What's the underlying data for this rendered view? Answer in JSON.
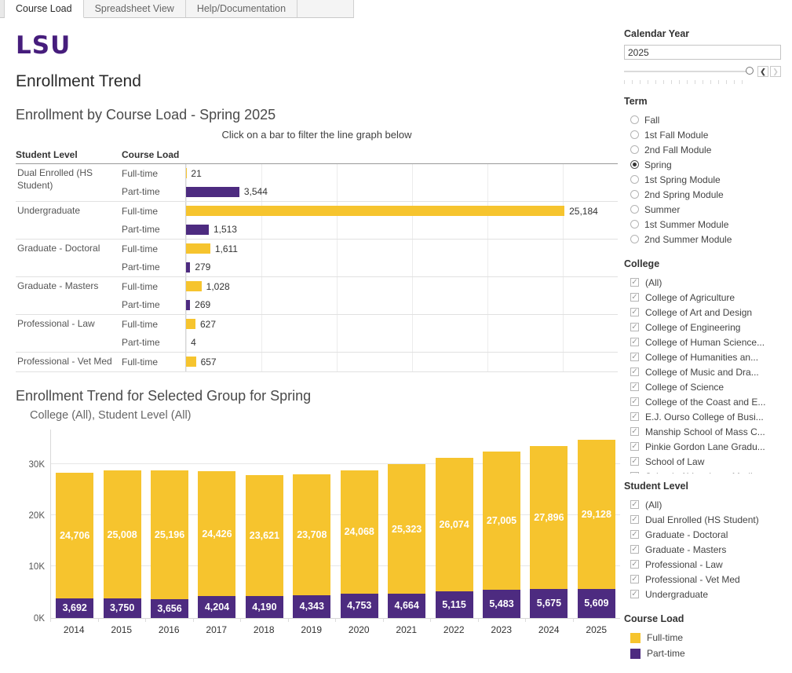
{
  "colors": {
    "gold": "#F6C42E",
    "purple": "#4D2B80",
    "logo_purple": "#461D7C"
  },
  "tabs": [
    {
      "label": "Course Load",
      "active": true
    },
    {
      "label": "Spreadsheet View",
      "active": false
    },
    {
      "label": "Help/Documentation",
      "active": false
    }
  ],
  "logo_text": "LSU",
  "page_title": "Enrollment Trend",
  "chart_data": [
    {
      "id": "course_load_by_level",
      "type": "bar",
      "orientation": "horizontal",
      "title": "Enrollment by Course Load - Spring 2025",
      "subtitle": "Click on a bar to filter the line graph below",
      "col_headers": [
        "Student Level",
        "Course Load"
      ],
      "xlim": [
        0,
        28730
      ],
      "gridline_interval": 5000,
      "rows": [
        {
          "level": "Dual Enrolled (HS Student)",
          "entries": [
            {
              "load": "Full-time",
              "series": "Full-time",
              "value": 21,
              "label": "21"
            },
            {
              "load": "Part-time",
              "series": "Part-time",
              "value": 3544,
              "label": "3,544"
            }
          ]
        },
        {
          "level": "Undergraduate",
          "entries": [
            {
              "load": "Full-time",
              "series": "Full-time",
              "value": 25184,
              "label": "25,184"
            },
            {
              "load": "Part-time",
              "series": "Part-time",
              "value": 1513,
              "label": "1,513"
            }
          ]
        },
        {
          "level": "Graduate - Doctoral",
          "entries": [
            {
              "load": "Full-time",
              "series": "Full-time",
              "value": 1611,
              "label": "1,611"
            },
            {
              "load": "Part-time",
              "series": "Part-time",
              "value": 279,
              "label": "279"
            }
          ]
        },
        {
          "level": "Graduate - Masters",
          "entries": [
            {
              "load": "Full-time",
              "series": "Full-time",
              "value": 1028,
              "label": "1,028"
            },
            {
              "load": "Part-time",
              "series": "Part-time",
              "value": 269,
              "label": "269"
            }
          ]
        },
        {
          "level": "Professional - Law",
          "entries": [
            {
              "load": "Full-time",
              "series": "Full-time",
              "value": 627,
              "label": "627"
            },
            {
              "load": "Part-time",
              "series": "Part-time",
              "value": 4,
              "label": "4"
            }
          ]
        },
        {
          "level": "Professional - Vet Med",
          "entries": [
            {
              "load": "Full-time",
              "series": "Full-time",
              "value": 657,
              "label": "657"
            }
          ]
        }
      ]
    },
    {
      "id": "enrollment_trend",
      "type": "bar",
      "stacked": true,
      "title": "Enrollment Trend for Selected Group for Spring",
      "subtitle": "College (All), Student Level (All)",
      "categories": [
        "2014",
        "2015",
        "2016",
        "2017",
        "2018",
        "2019",
        "2020",
        "2021",
        "2022",
        "2023",
        "2024",
        "2025"
      ],
      "series": [
        {
          "name": "Full-time",
          "values": [
            24706,
            25008,
            25196,
            24426,
            23621,
            23708,
            24068,
            25323,
            26074,
            27005,
            27896,
            29128
          ],
          "labels": [
            "24,706",
            "25,008",
            "25,196",
            "24,426",
            "23,621",
            "23,708",
            "24,068",
            "25,323",
            "26,074",
            "27,005",
            "27,896",
            "29,128"
          ]
        },
        {
          "name": "Part-time",
          "values": [
            3692,
            3750,
            3656,
            4204,
            4190,
            4343,
            4753,
            4664,
            5115,
            5483,
            5675,
            5609
          ],
          "labels": [
            "3,692",
            "3,750",
            "3,656",
            "4,204",
            "4,190",
            "4,343",
            "4,753",
            "4,664",
            "5,115",
            "5,483",
            "5,675",
            "5,609"
          ]
        }
      ],
      "yticks": [
        {
          "value": 0,
          "label": "0K"
        },
        {
          "value": 10000,
          "label": "10K"
        },
        {
          "value": 20000,
          "label": "20K"
        },
        {
          "value": 30000,
          "label": "30K"
        }
      ],
      "ylim": [
        0,
        37000
      ],
      "grid": true,
      "legend_position": "right-panel"
    }
  ],
  "filters": {
    "calendar_year": {
      "label": "Calendar Year",
      "value": "2025"
    },
    "term": {
      "label": "Term",
      "selected": "Spring",
      "options": [
        "Fall",
        "1st Fall Module",
        "2nd Fall Module",
        "Spring",
        "1st Spring Module",
        "2nd Spring Module",
        "Summer",
        "1st Summer Module",
        "2nd Summer Module"
      ]
    },
    "college": {
      "label": "College",
      "options": [
        "(All)",
        "College of Agriculture",
        "College of Art and Design",
        "College of Engineering",
        "College of Human Science...",
        "College of Humanities an...",
        "College of Music and Dra...",
        "College of Science",
        "College of the Coast and E...",
        "E.J. Ourso College of Busi...",
        "Manship School of Mass C...",
        "Pinkie Gordon Lane Gradu...",
        "School of Law",
        "School of Veterinary Medi..."
      ],
      "all_checked": true
    },
    "student_level": {
      "label": "Student Level",
      "options": [
        "(All)",
        "Dual Enrolled (HS Student)",
        "Graduate - Doctoral",
        "Graduate - Masters",
        "Professional - Law",
        "Professional - Vet Med",
        "Undergraduate"
      ],
      "all_checked": true
    },
    "course_load_legend": {
      "label": "Course Load",
      "items": [
        {
          "label": "Full-time",
          "series": "Full-time"
        },
        {
          "label": "Part-time",
          "series": "Part-time"
        }
      ]
    }
  }
}
